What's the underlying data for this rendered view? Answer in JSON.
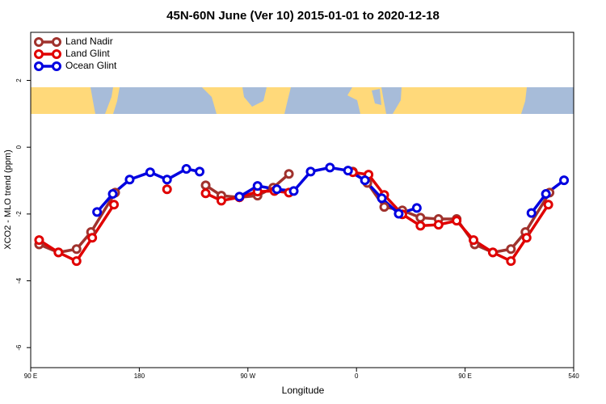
{
  "chart_data": {
    "type": "line",
    "title": "45N-60N June (Ver 10)   2015-01-01 to 2020-12-18",
    "xlabel": "Longitude",
    "ylabel": "XCO2 - MLO trend (ppm)",
    "xlim": [
      90,
      540
    ],
    "ylim": [
      -6.6,
      3.44
    ],
    "xticks": [
      {
        "value": 90,
        "label": "90 E"
      },
      180,
      {
        "value": 270,
        "label": "90 W"
      },
      {
        "value": 360,
        "label": "0"
      },
      {
        "value": 450,
        "label": "90 E"
      },
      540
    ],
    "yticks": [
      -6,
      -4,
      -2,
      0,
      2
    ],
    "legend": "top-left",
    "series": [
      {
        "name": "Land Nadir",
        "color": "#a0322d",
        "x": [
          97,
          113,
          128,
          140,
          160,
          null,
          235,
          248,
          263,
          278,
          291,
          304,
          null,
          357,
          369,
          383,
          398,
          413,
          428,
          443,
          458,
          473,
          488,
          500,
          520
        ],
        "values": [
          -2.91,
          -3.15,
          -3.05,
          -2.54,
          -1.36,
          null,
          -1.14,
          -1.45,
          -1.5,
          -1.45,
          -1.21,
          -0.8,
          null,
          -0.73,
          -1.07,
          -1.79,
          -1.89,
          -2.11,
          -2.15,
          -2.15,
          -2.91,
          -3.15,
          -3.05,
          -2.54,
          -1.36
        ]
      },
      {
        "name": "Land Glint",
        "color": "#e00000",
        "x": [
          97,
          113,
          128,
          141,
          159,
          null,
          203,
          null,
          235,
          248,
          263,
          278,
          292,
          304,
          null,
          357,
          370,
          383,
          398,
          413,
          428,
          443,
          457,
          473,
          488,
          501,
          519
        ],
        "values": [
          -2.78,
          -3.15,
          -3.41,
          -2.71,
          -1.72,
          null,
          -1.26,
          null,
          -1.38,
          -1.6,
          -1.5,
          -1.33,
          -1.31,
          -1.36,
          null,
          -0.75,
          -0.82,
          -1.43,
          -2.01,
          -2.35,
          -2.32,
          -2.2,
          -2.78,
          -3.15,
          -3.41,
          -2.71,
          -1.72
        ]
      },
      {
        "name": "Ocean Glint",
        "color": "#0000e0",
        "x": [
          145,
          158,
          172,
          189,
          203,
          219,
          230,
          null,
          263,
          278,
          294,
          308,
          322,
          338,
          353,
          367,
          381,
          395,
          410,
          null,
          505,
          517,
          532
        ],
        "values": [
          -1.94,
          -1.4,
          -0.97,
          -0.75,
          -0.97,
          -0.65,
          -0.73,
          null,
          -1.48,
          -1.16,
          -1.26,
          -1.31,
          -0.73,
          -0.61,
          -0.7,
          -0.99,
          -1.53,
          -1.99,
          -1.82,
          null,
          -1.97,
          -1.4,
          -0.99
        ]
      }
    ]
  }
}
